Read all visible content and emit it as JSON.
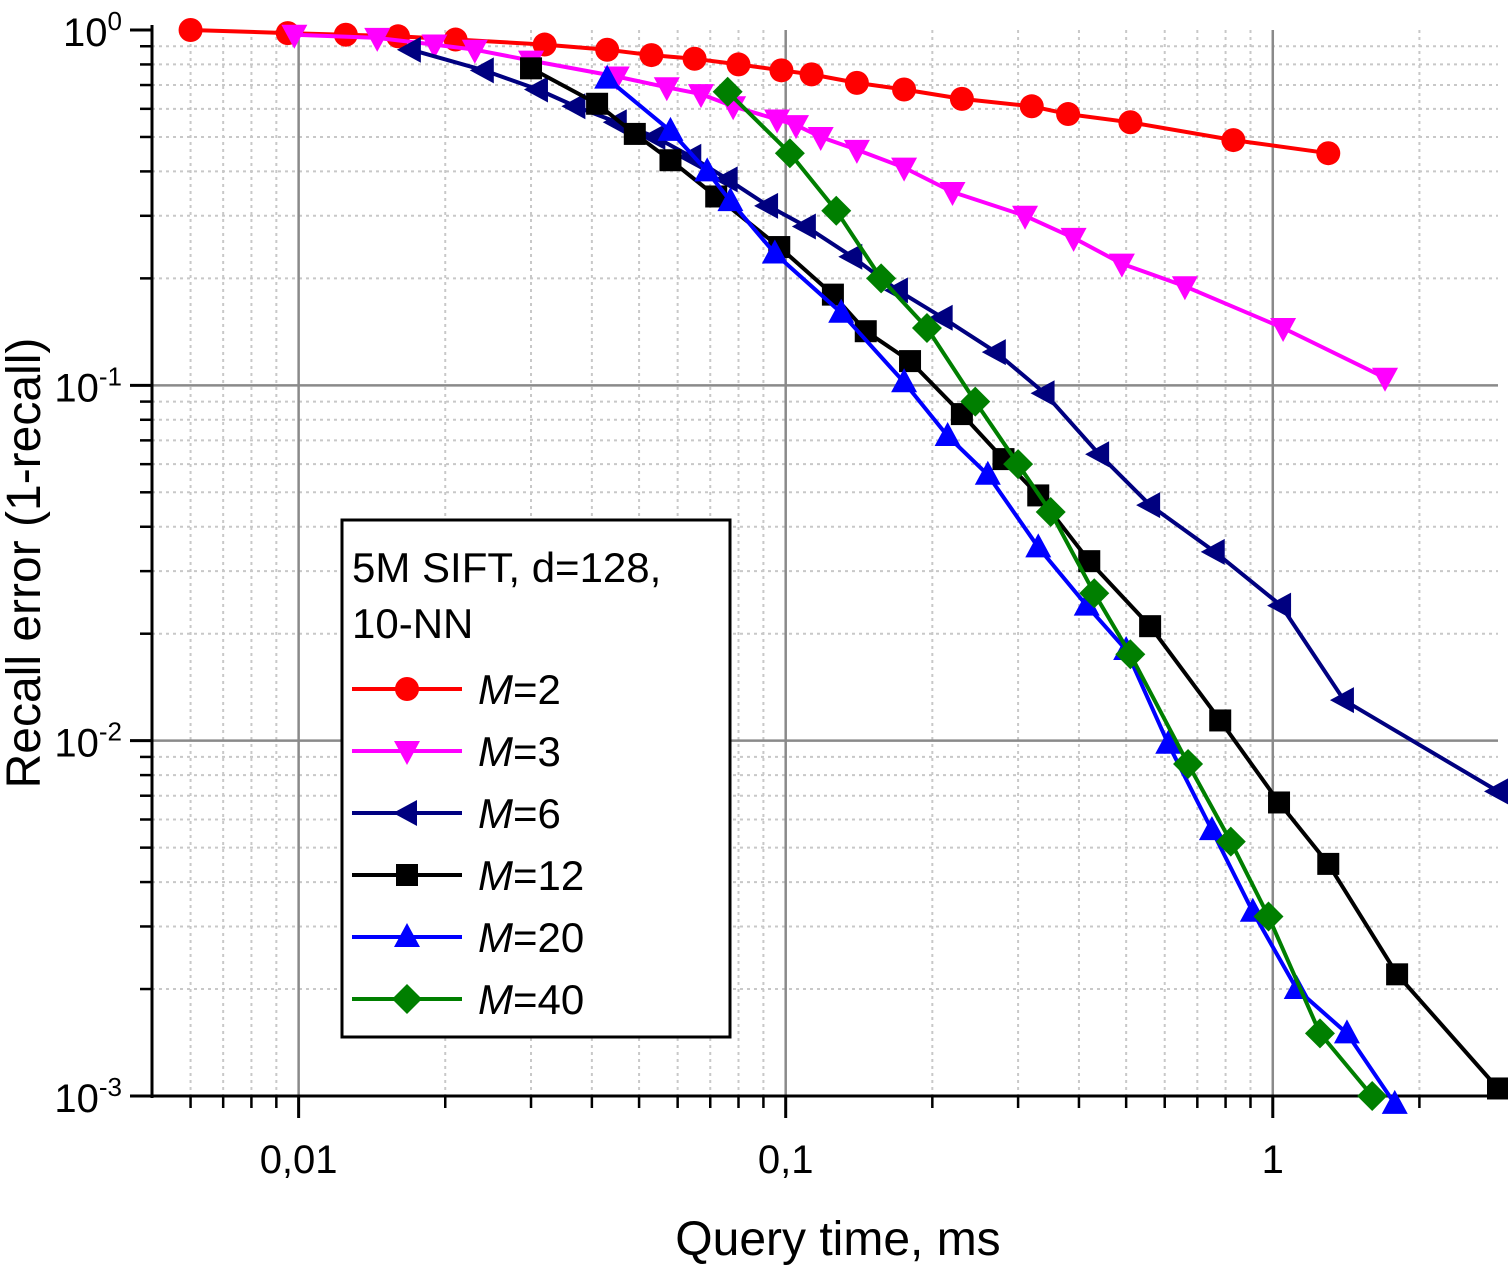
{
  "chart_data": {
    "type": "line",
    "title": "",
    "xlabel": "Query time, ms",
    "ylabel": "Recall error (1-recall)",
    "xscale": "log",
    "yscale": "log",
    "xlim": [
      0.005,
      2.9
    ],
    "ylim": [
      0.001,
      1.0
    ],
    "grid": true,
    "legend_position": "bottom-left",
    "legend_title_lines": [
      "5M SIFT, d=128,",
      "10-NN"
    ],
    "x_tick_labels": [
      "0,01",
      "0,1",
      "1"
    ],
    "y_tick_labels": [
      {
        "base": "10",
        "exp": "0"
      },
      {
        "base": "10",
        "exp": "-1"
      },
      {
        "base": "10",
        "exp": "-2"
      },
      {
        "base": "10",
        "exp": "-3"
      }
    ],
    "series": [
      {
        "name": "M=2",
        "label_var": "M",
        "label_val": "=2",
        "color": "#ff0000",
        "marker": "circle",
        "x": [
          0.006,
          0.0095,
          0.0125,
          0.016,
          0.021,
          0.032,
          0.043,
          0.053,
          0.065,
          0.08,
          0.098,
          0.113,
          0.14,
          0.175,
          0.23,
          0.32,
          0.38,
          0.51,
          0.83,
          1.3
        ],
        "y": [
          1.0,
          0.98,
          0.97,
          0.96,
          0.94,
          0.91,
          0.88,
          0.85,
          0.83,
          0.8,
          0.77,
          0.75,
          0.71,
          0.68,
          0.64,
          0.61,
          0.58,
          0.55,
          0.49,
          0.45
        ]
      },
      {
        "name": "M=3",
        "label_var": "M",
        "label_val": "=3",
        "color": "#ff00ff",
        "marker": "triangle-down",
        "x": [
          0.0098,
          0.0145,
          0.019,
          0.023,
          0.03,
          0.045,
          0.057,
          0.067,
          0.078,
          0.096,
          0.105,
          0.118,
          0.14,
          0.175,
          0.22,
          0.31,
          0.39,
          0.49,
          0.66,
          1.05,
          1.7
        ],
        "y": [
          0.97,
          0.95,
          0.91,
          0.88,
          0.82,
          0.74,
          0.69,
          0.66,
          0.61,
          0.56,
          0.54,
          0.5,
          0.46,
          0.41,
          0.35,
          0.3,
          0.26,
          0.22,
          0.19,
          0.145,
          0.105
        ]
      },
      {
        "name": "M=6",
        "label_var": "M",
        "label_val": "=6",
        "color": "#000080",
        "marker": "triangle-left",
        "x": [
          0.017,
          0.024,
          0.031,
          0.037,
          0.045,
          0.054,
          0.064,
          0.076,
          0.092,
          0.11,
          0.137,
          0.17,
          0.21,
          0.27,
          0.34,
          0.44,
          0.56,
          0.76,
          1.04,
          1.4,
          2.9
        ],
        "y": [
          0.88,
          0.77,
          0.68,
          0.61,
          0.55,
          0.5,
          0.44,
          0.38,
          0.32,
          0.28,
          0.23,
          0.185,
          0.155,
          0.124,
          0.095,
          0.064,
          0.046,
          0.034,
          0.024,
          0.013,
          0.0072
        ]
      },
      {
        "name": "M=12",
        "label_var": "M",
        "label_val": "=12",
        "color": "#000000",
        "marker": "square",
        "x": [
          0.03,
          0.041,
          0.049,
          0.058,
          0.072,
          0.097,
          0.125,
          0.146,
          0.18,
          0.23,
          0.28,
          0.33,
          0.42,
          0.56,
          0.78,
          1.03,
          1.3,
          1.8,
          2.9
        ],
        "y": [
          0.78,
          0.62,
          0.51,
          0.43,
          0.34,
          0.245,
          0.18,
          0.142,
          0.117,
          0.083,
          0.062,
          0.049,
          0.032,
          0.021,
          0.0114,
          0.0067,
          0.0045,
          0.0022,
          0.00105
        ]
      },
      {
        "name": "M=20",
        "label_var": "M",
        "label_val": "=20",
        "color": "#0000ff",
        "marker": "triangle-up",
        "x": [
          0.043,
          0.058,
          0.069,
          0.077,
          0.095,
          0.13,
          0.175,
          0.215,
          0.26,
          0.33,
          0.415,
          0.5,
          0.61,
          0.75,
          0.91,
          1.12,
          1.42,
          1.78
        ],
        "y": [
          0.73,
          0.52,
          0.4,
          0.33,
          0.235,
          0.16,
          0.102,
          0.072,
          0.056,
          0.035,
          0.024,
          0.018,
          0.0098,
          0.0056,
          0.0033,
          0.002,
          0.0015,
          0.00095
        ]
      },
      {
        "name": "M=40",
        "label_var": "M",
        "label_val": "=40",
        "color": "#007f00",
        "marker": "diamond",
        "x": [
          0.076,
          0.102,
          0.127,
          0.157,
          0.195,
          0.245,
          0.3,
          0.35,
          0.43,
          0.51,
          0.67,
          0.82,
          0.98,
          1.25,
          1.6
        ],
        "y": [
          0.67,
          0.45,
          0.31,
          0.2,
          0.145,
          0.09,
          0.06,
          0.044,
          0.026,
          0.0175,
          0.0086,
          0.0052,
          0.0032,
          0.0015,
          0.001
        ]
      }
    ]
  }
}
